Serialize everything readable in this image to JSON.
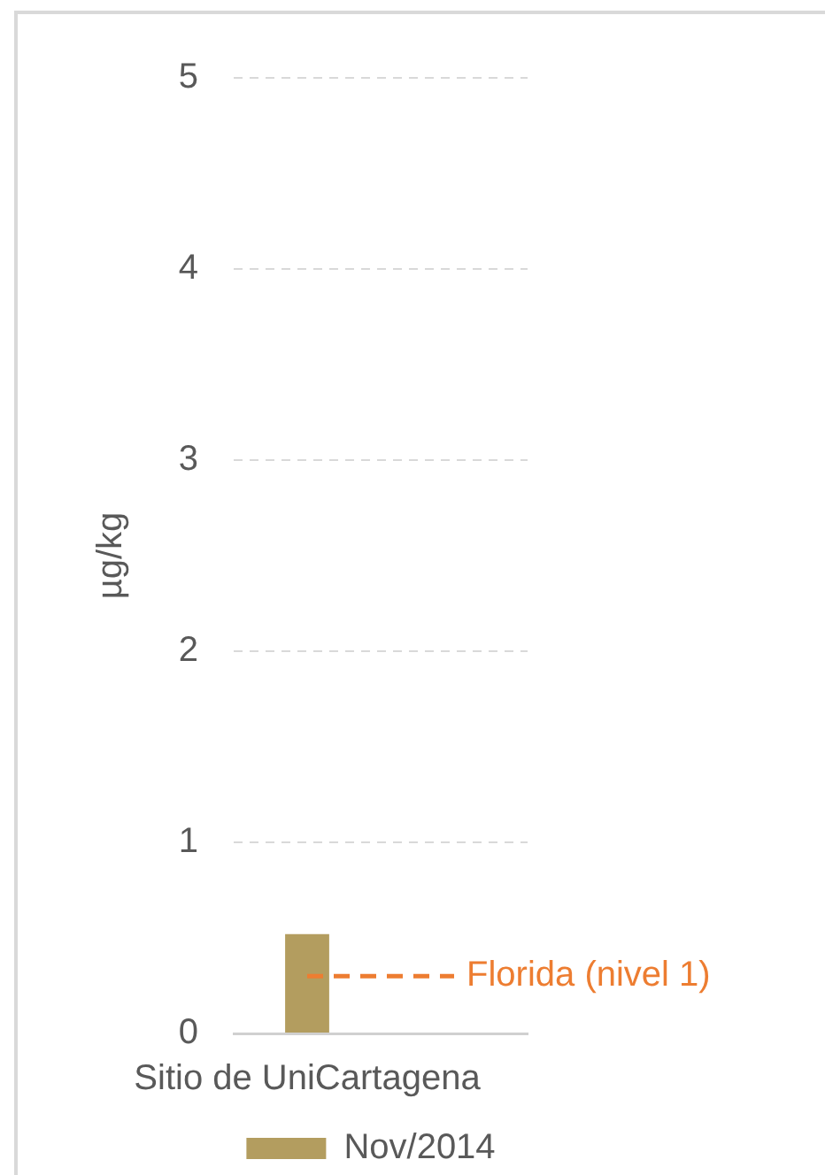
{
  "chart_data": {
    "type": "bar",
    "ylabel": "µg/kg",
    "categories": [
      "Sitio de UniCartagena",
      null
    ],
    "series": [
      {
        "name": "Nov/2014",
        "color": "#b39d5f",
        "values": [
          0.52,
          null
        ]
      },
      {
        "type": "line",
        "name": "Florida (nivel 1)",
        "color": "#ed7d31",
        "values": [
          0.3,
          0.3
        ],
        "line_style": "dashed",
        "marker": "none"
      }
    ],
    "ylim": [
      0,
      5
    ],
    "yticks": [
      0,
      1,
      2,
      3,
      4,
      5
    ],
    "grid": "y",
    "legend": "bottom"
  }
}
